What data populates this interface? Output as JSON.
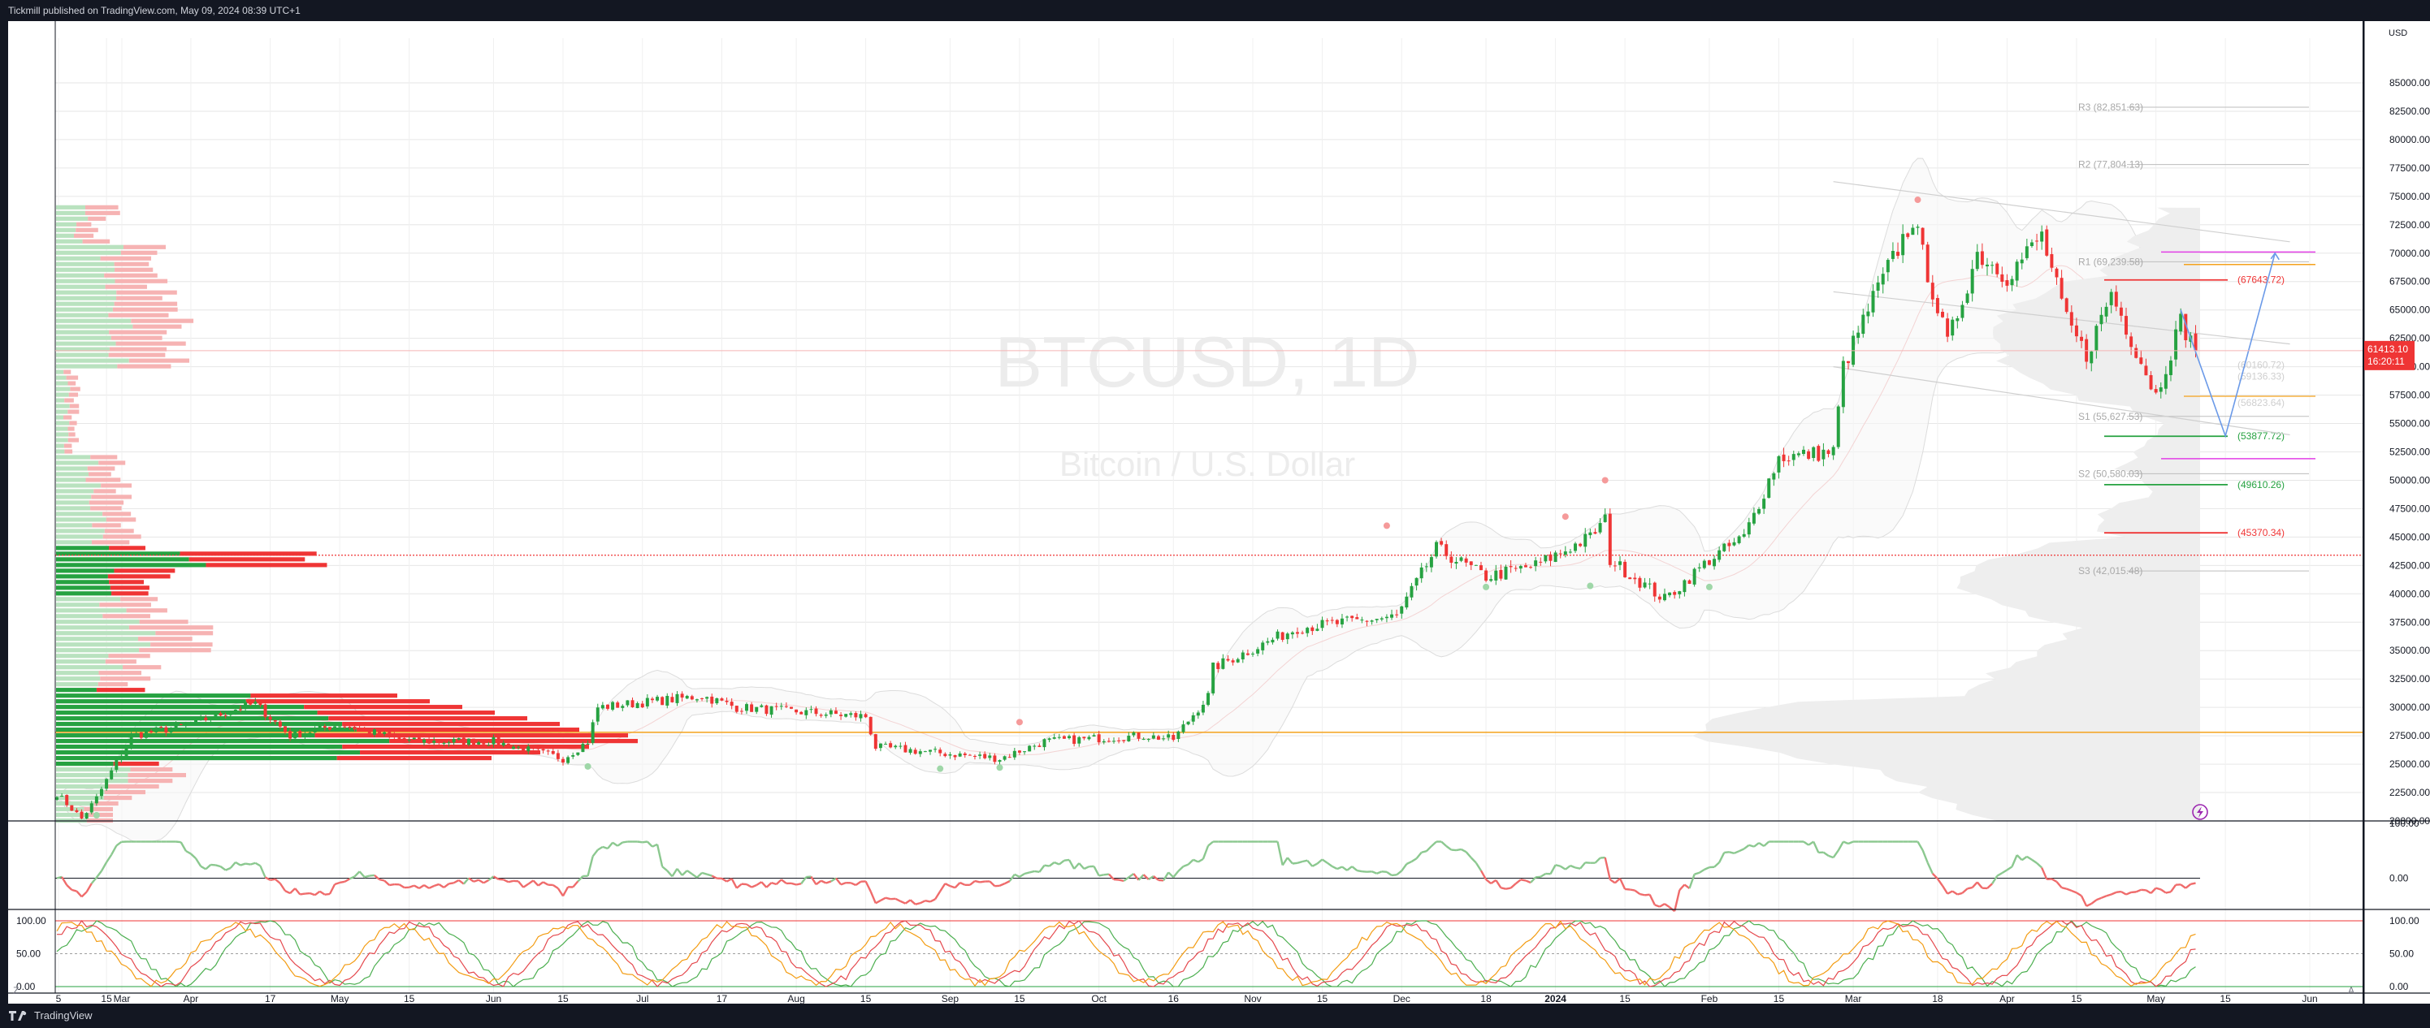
{
  "header": {
    "published": "Tickmill published on TradingView.com, May 09, 2024 08:39 UTC+1"
  },
  "footer": {
    "brand": "TradingView"
  },
  "colors": {
    "up": "#26a241",
    "down": "#ef3535",
    "orange": "#f4a21c",
    "magenta": "#e23fe6",
    "blue": "#6b9ae8",
    "pivot": "#bdbdbd",
    "grid": "#e6e6e6"
  },
  "watermark": {
    "symbol": "BTCUSD, 1D",
    "name": "Bitcoin / U.S. Dollar"
  },
  "price_axis": {
    "currency": "USD",
    "ticks": [
      "85000.00",
      "82500.00",
      "80000.00",
      "77500.00",
      "75000.00",
      "72500.00",
      "70000.00",
      "67500.00",
      "65000.00",
      "62500.00",
      "60000.00",
      "57500.00",
      "55000.00",
      "52500.00",
      "50000.00",
      "47500.00",
      "45000.00",
      "42500.00",
      "40000.00",
      "37500.00",
      "35000.00",
      "32500.00",
      "30000.00",
      "27500.00",
      "25000.00",
      "22500.00",
      "20000.00"
    ],
    "last_price": "61413.10",
    "countdown": "16:20:11"
  },
  "time_axis": {
    "labels": [
      "5",
      "Mar",
      "15",
      "Apr",
      "17",
      "May",
      "15",
      "Jun",
      "15",
      "Jul",
      "17",
      "Aug",
      "15",
      "Sep",
      "15",
      "Oct",
      "16",
      "Nov",
      "15",
      "Dec",
      "18",
      "2024",
      "15",
      "Feb",
      "15",
      "Mar",
      "18",
      "Apr",
      "15",
      "May",
      "15",
      "Jun"
    ]
  },
  "indicator1": {
    "ticks": [
      "100.00",
      "0.00"
    ]
  },
  "indicator2": {
    "ticks": [
      "100.00",
      "50.00",
      "0.00"
    ]
  },
  "buttons": {
    "left": "Z",
    "right": "A"
  },
  "levels": {
    "pivots": [
      "R3 (82,851.63)",
      "R2 (77,804.13)",
      "R1 (69,239.58)",
      "S1 (55,627.53)",
      "S2 (50,580.03)",
      "S3 (42,015.48)"
    ],
    "red": [
      "(67643.72)",
      "(45370.34)"
    ],
    "green": [
      "(53877.72)",
      "(49610.26)"
    ],
    "faint": [
      "(60160.72)",
      "(59136.33)",
      "(56823.64)"
    ]
  },
  "chart_data": {
    "type": "candlestick",
    "title": "BTCUSD, 1D",
    "subtitle": "Bitcoin / U.S. Dollar",
    "ylabel": "USD",
    "ylim": [
      20000,
      85000
    ],
    "x_range": [
      "2023-03-05",
      "2024-06-01"
    ],
    "last_price": 61413.1,
    "horizontal_levels": [
      {
        "label": "R3",
        "value": 82851.63
      },
      {
        "label": "R2",
        "value": 77804.13
      },
      {
        "label": "R1",
        "value": 69239.58
      },
      {
        "label": "S1",
        "value": 55627.53
      },
      {
        "label": "S2",
        "value": 50580.03
      },
      {
        "label": "S3",
        "value": 42015.48
      },
      {
        "value": 67643.72,
        "color": "red"
      },
      {
        "value": 53877.72,
        "color": "green"
      },
      {
        "value": 49610.26,
        "color": "green"
      },
      {
        "value": 45370.34,
        "color": "red"
      }
    ],
    "anchors": [
      {
        "date": "2023-03-05",
        "close": 22400
      },
      {
        "date": "2023-03-10",
        "close": 20200
      },
      {
        "date": "2023-03-13",
        "close": 22000
      },
      {
        "date": "2023-03-20",
        "close": 27500
      },
      {
        "date": "2023-03-31",
        "close": 28400
      },
      {
        "date": "2023-04-11",
        "close": 30000
      },
      {
        "date": "2023-04-14",
        "close": 30300
      },
      {
        "date": "2023-04-21",
        "close": 27500
      },
      {
        "date": "2023-05-01",
        "close": 28500
      },
      {
        "date": "2023-05-15",
        "close": 27000
      },
      {
        "date": "2023-06-01",
        "close": 27000
      },
      {
        "date": "2023-06-15",
        "close": 25500
      },
      {
        "date": "2023-06-20",
        "close": 27000
      },
      {
        "date": "2023-06-22",
        "close": 30000
      },
      {
        "date": "2023-07-13",
        "close": 31000
      },
      {
        "date": "2023-07-20",
        "close": 30000
      },
      {
        "date": "2023-08-15",
        "close": 29200
      },
      {
        "date": "2023-08-17",
        "close": 26500
      },
      {
        "date": "2023-09-11",
        "close": 25500
      },
      {
        "date": "2023-09-20",
        "close": 27000
      },
      {
        "date": "2023-10-10",
        "close": 27500
      },
      {
        "date": "2023-10-16",
        "close": 27200
      },
      {
        "date": "2023-10-23",
        "close": 31000
      },
      {
        "date": "2023-10-24",
        "close": 33500
      },
      {
        "date": "2023-11-10",
        "close": 37000
      },
      {
        "date": "2023-11-30",
        "close": 38000
      },
      {
        "date": "2023-12-04",
        "close": 41000
      },
      {
        "date": "2023-12-08",
        "close": 44000
      },
      {
        "date": "2023-12-18",
        "close": 41500
      },
      {
        "date": "2023-12-28",
        "close": 42500
      },
      {
        "date": "2024-01-08",
        "close": 45000
      },
      {
        "date": "2024-01-11",
        "close": 46500
      },
      {
        "date": "2024-01-12",
        "close": 43000
      },
      {
        "date": "2024-01-23",
        "close": 39500
      },
      {
        "date": "2024-02-01",
        "close": 43000
      },
      {
        "date": "2024-02-08",
        "close": 45000
      },
      {
        "date": "2024-02-15",
        "close": 52000
      },
      {
        "date": "2024-02-26",
        "close": 52500
      },
      {
        "date": "2024-02-28",
        "close": 60000
      },
      {
        "date": "2024-03-05",
        "close": 66000
      },
      {
        "date": "2024-03-13",
        "close": 73000
      },
      {
        "date": "2024-03-20",
        "close": 62000
      },
      {
        "date": "2024-03-26",
        "close": 70000
      },
      {
        "date": "2024-04-01",
        "close": 68000
      },
      {
        "date": "2024-04-08",
        "close": 71500
      },
      {
        "date": "2024-04-13",
        "close": 64000
      },
      {
        "date": "2024-04-17",
        "close": 61000
      },
      {
        "date": "2024-04-22",
        "close": 66500
      },
      {
        "date": "2024-05-01",
        "close": 57500
      },
      {
        "date": "2024-05-06",
        "close": 64000
      },
      {
        "date": "2024-05-09",
        "close": 61413.1
      }
    ]
  }
}
